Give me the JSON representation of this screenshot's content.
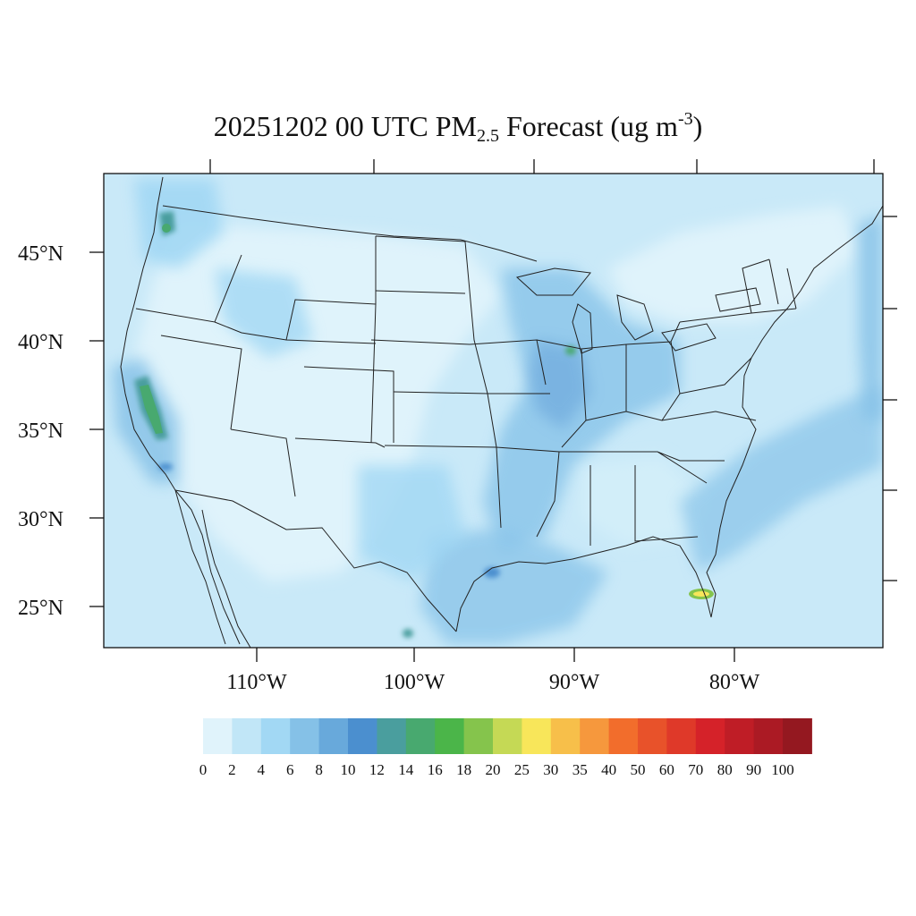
{
  "title": {
    "prefix": "20251202 00 UTC PM",
    "subscript": "2.5",
    "middle": " Forecast (ug m",
    "superscript": "-3",
    "suffix": ")"
  },
  "map": {
    "lat_labels": [
      "45°N",
      "40°N",
      "35°N",
      "30°N",
      "25°N"
    ],
    "lon_labels": [
      "110°W",
      "100°W",
      "90°W",
      "80°W"
    ],
    "colors": {
      "land_base": "#dff3fb",
      "ocean": "#c3e7f7",
      "boundary": "#222222"
    }
  },
  "colorbar": {
    "colors": [
      "#e0f3fb",
      "#c1e6f7",
      "#a2d8f4",
      "#85c1e7",
      "#68a9db",
      "#4b8fcf",
      "#4a9e9e",
      "#48a96f",
      "#4bb549",
      "#85c44c",
      "#c5d955",
      "#f8e65a",
      "#f7bf4a",
      "#f6983d",
      "#f26d2c",
      "#e8522a",
      "#df3929",
      "#d52229",
      "#bf1d26",
      "#ab1a24",
      "#941820"
    ],
    "labels": [
      "0",
      "2",
      "4",
      "6",
      "8",
      "10",
      "12",
      "14",
      "16",
      "18",
      "20",
      "25",
      "30",
      "35",
      "40",
      "50",
      "60",
      "70",
      "80",
      "90",
      "100"
    ]
  }
}
